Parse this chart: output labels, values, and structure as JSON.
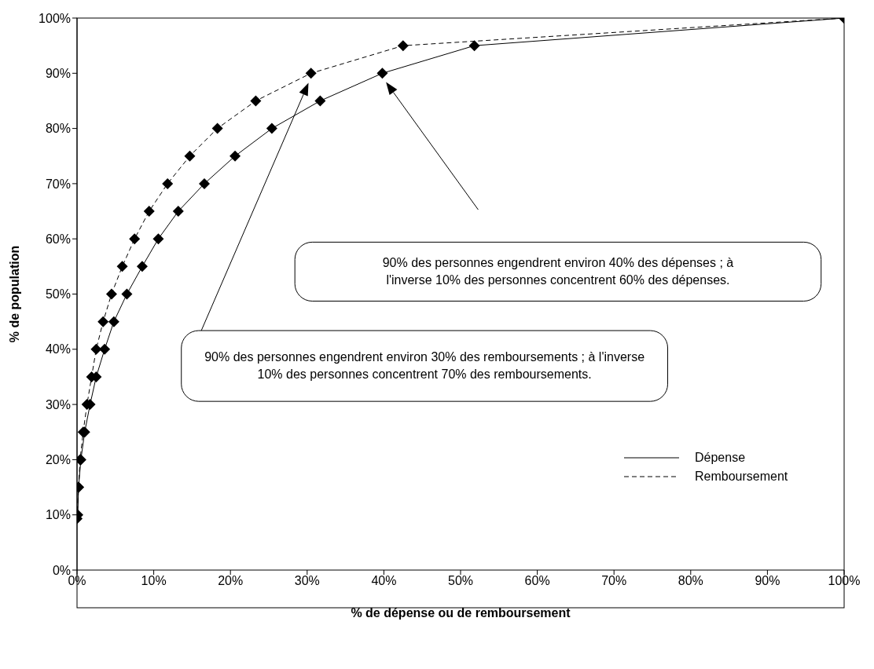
{
  "chart_data": {
    "type": "line",
    "xlabel": "% de dépense ou de remboursement",
    "ylabel": "% de population",
    "xlim": [
      0,
      100
    ],
    "ylim": [
      0,
      100
    ],
    "xticks": [
      {
        "value": 0,
        "label": "0%"
      },
      {
        "value": 10,
        "label": "10%"
      },
      {
        "value": 20,
        "label": "20%"
      },
      {
        "value": 30,
        "label": "30%"
      },
      {
        "value": 40,
        "label": "40%"
      },
      {
        "value": 50,
        "label": "50%"
      },
      {
        "value": 60,
        "label": "60%"
      },
      {
        "value": 70,
        "label": "70%"
      },
      {
        "value": 80,
        "label": "80%"
      },
      {
        "value": 90,
        "label": "90%"
      },
      {
        "value": 100,
        "label": "100%"
      }
    ],
    "yticks": [
      {
        "value": 0,
        "label": "0%"
      },
      {
        "value": 10,
        "label": "10%"
      },
      {
        "value": 20,
        "label": "20%"
      },
      {
        "value": 30,
        "label": "30%"
      },
      {
        "value": 40,
        "label": "40%"
      },
      {
        "value": 50,
        "label": "50%"
      },
      {
        "value": 60,
        "label": "60%"
      },
      {
        "value": 70,
        "label": "70%"
      },
      {
        "value": 80,
        "label": "80%"
      },
      {
        "value": 90,
        "label": "90%"
      },
      {
        "value": 100,
        "label": "100%"
      }
    ],
    "marker": "diamond",
    "legend": "bottom right",
    "series": [
      {
        "name": "Dépense",
        "color": "#000000",
        "line_style": "solid",
        "x": [
          0.1,
          0.2,
          0.5,
          1.0,
          1.7,
          2.5,
          3.6,
          4.8,
          6.5,
          8.5,
          10.6,
          13.2,
          16.6,
          20.6,
          25.4,
          31.7,
          39.8,
          51.8,
          100
        ],
        "values": [
          10,
          15,
          20,
          25,
          30,
          35,
          40,
          45,
          50,
          55,
          60,
          65,
          70,
          75,
          80,
          85,
          90,
          95,
          100
        ]
      },
      {
        "name": "Remboursement",
        "color": "#000000",
        "line_style": "dashed",
        "x": [
          0,
          0.2,
          0.4,
          0.8,
          1.3,
          1.9,
          2.5,
          3.4,
          4.5,
          5.9,
          7.5,
          9.4,
          11.8,
          14.7,
          18.3,
          23.3,
          30.5,
          42.5,
          100
        ],
        "values": [
          9.3,
          15,
          20,
          25,
          30,
          35,
          40,
          45,
          50,
          55,
          60,
          65,
          70,
          75,
          80,
          85,
          90,
          95,
          100
        ]
      }
    ],
    "annotations": [
      "90% des personnes engendrent environ 40% des dépenses ; à l'inverse 10% des personnes concentrent 60% des dépenses.",
      "90% des personnes engendrent environ 30% des remboursements ; à l'inverse 10% des personnes concentrent 70% des remboursements."
    ]
  }
}
